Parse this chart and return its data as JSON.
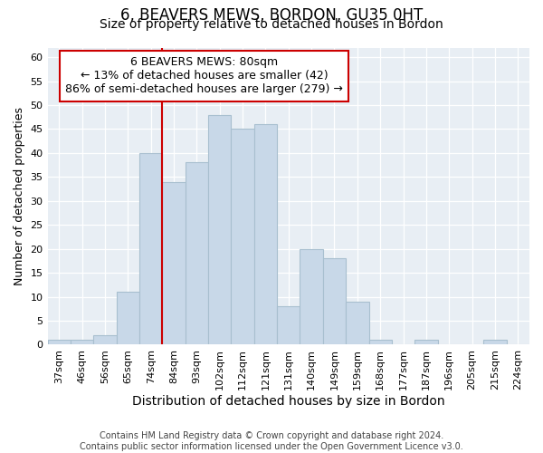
{
  "title": "6, BEAVERS MEWS, BORDON, GU35 0HT",
  "subtitle": "Size of property relative to detached houses in Bordon",
  "xlabel": "Distribution of detached houses by size in Bordon",
  "ylabel": "Number of detached properties",
  "footer_line1": "Contains HM Land Registry data © Crown copyright and database right 2024.",
  "footer_line2": "Contains public sector information licensed under the Open Government Licence v3.0.",
  "bin_labels": [
    "37sqm",
    "46sqm",
    "56sqm",
    "65sqm",
    "74sqm",
    "84sqm",
    "93sqm",
    "102sqm",
    "112sqm",
    "121sqm",
    "131sqm",
    "140sqm",
    "149sqm",
    "159sqm",
    "168sqm",
    "177sqm",
    "187sqm",
    "196sqm",
    "205sqm",
    "215sqm",
    "224sqm"
  ],
  "bin_values": [
    1,
    1,
    2,
    11,
    40,
    34,
    38,
    48,
    45,
    46,
    8,
    20,
    18,
    9,
    1,
    0,
    1,
    0,
    0,
    1,
    0
  ],
  "bar_color": "#c8d8e8",
  "bar_edge_color": "#a8bfcf",
  "vline_color": "#cc0000",
  "annotation_line1": "6 BEAVERS MEWS: 80sqm",
  "annotation_line2": "← 13% of detached houses are smaller (42)",
  "annotation_line3": "86% of semi-detached houses are larger (279) →",
  "annotation_box_edgecolor": "#cc0000",
  "annotation_box_facecolor": "white",
  "ylim": [
    0,
    62
  ],
  "yticks": [
    0,
    5,
    10,
    15,
    20,
    25,
    30,
    35,
    40,
    45,
    50,
    55,
    60
  ],
  "title_fontsize": 12,
  "subtitle_fontsize": 10,
  "tick_fontsize": 8,
  "ylabel_fontsize": 9,
  "xlabel_fontsize": 10,
  "footer_fontsize": 7,
  "annotation_fontsize": 9,
  "bg_color": "#e8eef4",
  "grid_color": "#ffffff"
}
